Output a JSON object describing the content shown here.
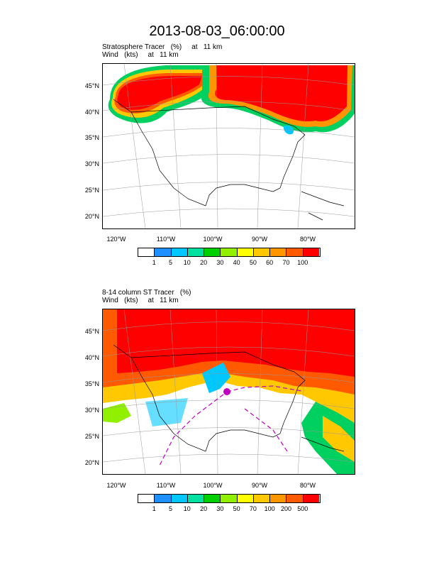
{
  "page_title": "2013-08-03_06:00:00",
  "panels": [
    {
      "subtitle_line1": "Stratosphere Tracer   (%)     at   11 km",
      "subtitle_line2": "Wind   (kts)     at   11 km",
      "lat_labels": [
        "45°N",
        "40°N",
        "35°N",
        "30°N",
        "25°N",
        "20°N"
      ],
      "lon_labels": [
        "120°W",
        "110°W",
        "100°W",
        "90°W",
        "80°W"
      ],
      "legend_labels": [
        "1",
        "5",
        "10",
        "20",
        "30",
        "40",
        "50",
        "60",
        "70",
        "100"
      ],
      "legend_colors": [
        "#ffffff",
        "#1e90ff",
        "#00c8ff",
        "#00e0a0",
        "#00d000",
        "#90f000",
        "#ffff00",
        "#ffc800",
        "#ff9600",
        "#ff5a00",
        "#ff0000"
      ]
    },
    {
      "subtitle_line1": "8-14 column ST Tracer   (%)",
      "subtitle_line2": "Wind   (kts)     at   11 km",
      "lat_labels": [
        "45°N",
        "40°N",
        "35°N",
        "30°N",
        "25°N",
        "20°N"
      ],
      "lon_labels": [
        "120°W",
        "110°W",
        "100°W",
        "90°W",
        "80°W"
      ],
      "legend_labels": [
        "1",
        "5",
        "10",
        "20",
        "30",
        "50",
        "70",
        "100",
        "200",
        "500"
      ],
      "legend_colors": [
        "#ffffff",
        "#1e90ff",
        "#00c8ff",
        "#00e0a0",
        "#00d000",
        "#90f000",
        "#ffff00",
        "#ffc800",
        "#ff9600",
        "#ff5a00",
        "#ff0000"
      ]
    }
  ]
}
